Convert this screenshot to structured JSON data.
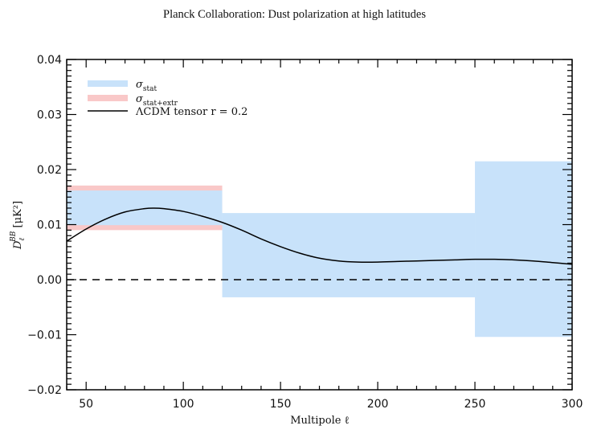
{
  "header": {
    "title": "Planck Collaboration: Dust polarization at high latitudes"
  },
  "chart_data": {
    "type": "area",
    "title": "",
    "xlabel": "Multipole ℓ",
    "ylabel": "D_ℓ^BB [μK²]",
    "ylabel_parts": {
      "main": "D",
      "sub": "ℓ",
      "sup": "BB",
      "unit": "[μK²]"
    },
    "xlim": [
      40,
      300
    ],
    "ylim": [
      -0.02,
      0.04
    ],
    "xticks": [
      50,
      100,
      150,
      200,
      250,
      300
    ],
    "xtick_labels": [
      "50",
      "100",
      "150",
      "200",
      "250",
      "300"
    ],
    "yticks": [
      -0.02,
      -0.01,
      0.0,
      0.01,
      0.02,
      0.03,
      0.04
    ],
    "ytick_labels": [
      "−0.02",
      "−0.01",
      "0.00",
      "0.01",
      "0.02",
      "0.03",
      "0.04"
    ],
    "x_minor_step": 10,
    "y_minor_step": 0.001,
    "grid": false,
    "legend_position": "top-left",
    "legend": [
      {
        "label": "σ",
        "sub": "stat",
        "color": "#c8e2fa",
        "kind": "band"
      },
      {
        "label": "σ",
        "sub": "stat+extr",
        "color": "#f9c8c8",
        "kind": "band"
      },
      {
        "label": "ΛCDM tensor r = 0.2",
        "color": "#000000",
        "kind": "line"
      }
    ],
    "bins": [
      {
        "x_range": [
          40,
          120
        ],
        "stat": [
          0.0099,
          0.0162
        ],
        "stat_extr": [
          0.009,
          0.0171
        ]
      },
      {
        "x_range": [
          120,
          250
        ],
        "stat": [
          -0.0032,
          0.0121
        ],
        "stat_extr": null
      },
      {
        "x_range": [
          250,
          300
        ],
        "stat": [
          -0.0104,
          0.0215
        ],
        "stat_extr": null
      }
    ],
    "series": [
      {
        "name": "ΛCDM tensor r = 0.2",
        "x": [
          40,
          50,
          60,
          70,
          80,
          85,
          90,
          100,
          110,
          120,
          130,
          140,
          150,
          160,
          170,
          180,
          190,
          200,
          210,
          220,
          230,
          240,
          250,
          260,
          270,
          280,
          290,
          300
        ],
        "y": [
          0.007,
          0.0092,
          0.011,
          0.0123,
          0.0129,
          0.013,
          0.0129,
          0.0124,
          0.0115,
          0.0104,
          0.009,
          0.0074,
          0.006,
          0.0048,
          0.0039,
          0.0034,
          0.0032,
          0.0032,
          0.0033,
          0.0034,
          0.0035,
          0.0036,
          0.0037,
          0.0037,
          0.0036,
          0.0034,
          0.0031,
          0.0028
        ]
      },
      {
        "name": "zero",
        "style": "dashed",
        "y": 0.0
      }
    ]
  }
}
